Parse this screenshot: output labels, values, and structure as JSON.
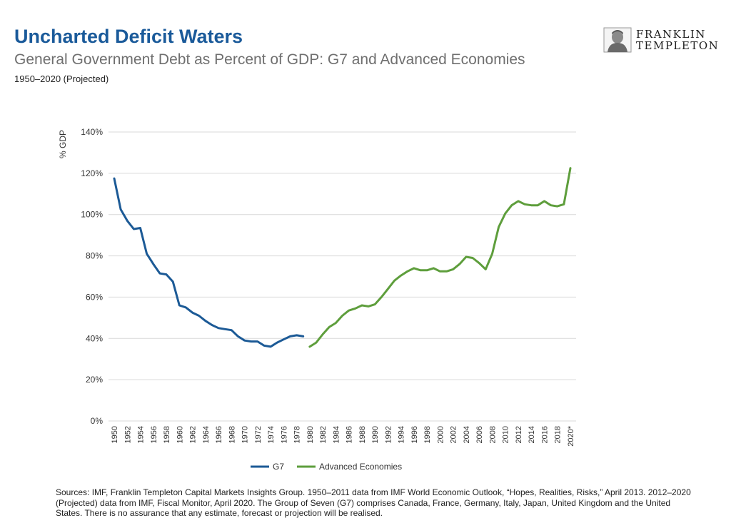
{
  "header": {
    "title": "Uncharted Deficit Waters",
    "subtitle": "General Government Debt as Percent of GDP: G7 and Advanced Economies",
    "period": "1950–2020 (Projected)"
  },
  "logo": {
    "line1": "FRANKLIN",
    "line2": "TEMPLETON",
    "icon": "franklin-portrait-icon"
  },
  "sources": "Sources: IMF, Franklin Templeton Capital Markets Insights Group. 1950–2011 data from IMF World Economic Outlook, “Hopes, Realities, Risks,” April 2013. 2012–2020 (Projected) data from IMF, Fiscal Monitor, April 2020. The Group of Seven (G7) comprises Canada, France, Germany, Italy, Japan, United Kingdom and the United States. There is no assurance that any estimate, forecast or projection will be realised.",
  "colors": {
    "g7": "#1c5a96",
    "advanced": "#5e9e3c",
    "title": "#1a5a9a",
    "grid": "#d9d9d9"
  },
  "chart_data": {
    "type": "line",
    "ylabel": "% GDP",
    "xlabel": "",
    "ylim": [
      0,
      140
    ],
    "yticks": [
      "0%",
      "20%",
      "40%",
      "60%",
      "80%",
      "100%",
      "120%",
      "140%"
    ],
    "x_tick_labels": [
      "1950",
      "1952",
      "1954",
      "1956",
      "1958",
      "1960",
      "1962",
      "1964",
      "1966",
      "1968",
      "1970",
      "1972",
      "1974",
      "1976",
      "1978",
      "1980",
      "1982",
      "1984",
      "1986",
      "1988",
      "1990",
      "1992",
      "1994",
      "1996",
      "1998",
      "2000",
      "2002",
      "2004",
      "2006",
      "2008",
      "2010",
      "2012",
      "2014",
      "2016",
      "2018",
      "2020*"
    ],
    "x_range": [
      1950,
      2020
    ],
    "grid": true,
    "legend": "bottom-center",
    "series": [
      {
        "name": "G7",
        "x": [
          1950,
          1951,
          1952,
          1953,
          1954,
          1955,
          1956,
          1957,
          1958,
          1959,
          1960,
          1961,
          1962,
          1963,
          1964,
          1965,
          1966,
          1967,
          1968,
          1969,
          1970,
          1971,
          1972,
          1973,
          1974,
          1975,
          1976,
          1977,
          1978,
          1979
        ],
        "values": [
          117.5,
          102.5,
          97,
          93,
          93.5,
          81,
          76,
          71.5,
          71,
          67.5,
          56,
          55,
          52.5,
          51,
          48.5,
          46.5,
          45,
          44.5,
          44,
          41,
          39,
          38.5,
          38.5,
          36.5,
          36,
          38,
          39.5,
          41,
          41.5,
          41
        ]
      },
      {
        "name": "Advanced Economies",
        "x": [
          1980,
          1981,
          1982,
          1983,
          1984,
          1985,
          1986,
          1987,
          1988,
          1989,
          1990,
          1991,
          1992,
          1993,
          1994,
          1995,
          1996,
          1997,
          1998,
          1999,
          2000,
          2001,
          2002,
          2003,
          2004,
          2005,
          2006,
          2007,
          2008,
          2009,
          2010,
          2011,
          2012,
          2013,
          2014,
          2015,
          2016,
          2017,
          2018,
          2019,
          2020
        ],
        "values": [
          36,
          38,
          42,
          45.5,
          47.5,
          51,
          53.5,
          54.5,
          56,
          55.5,
          56.5,
          60,
          64,
          68,
          70.5,
          72.5,
          74,
          73,
          73,
          74,
          72.5,
          72.5,
          73.5,
          76,
          79.5,
          79,
          76.5,
          73.5,
          81,
          94,
          100.5,
          104.5,
          106.5,
          105,
          104.5,
          104.5,
          106.5,
          104.5,
          104,
          105,
          122.5
        ]
      }
    ]
  }
}
